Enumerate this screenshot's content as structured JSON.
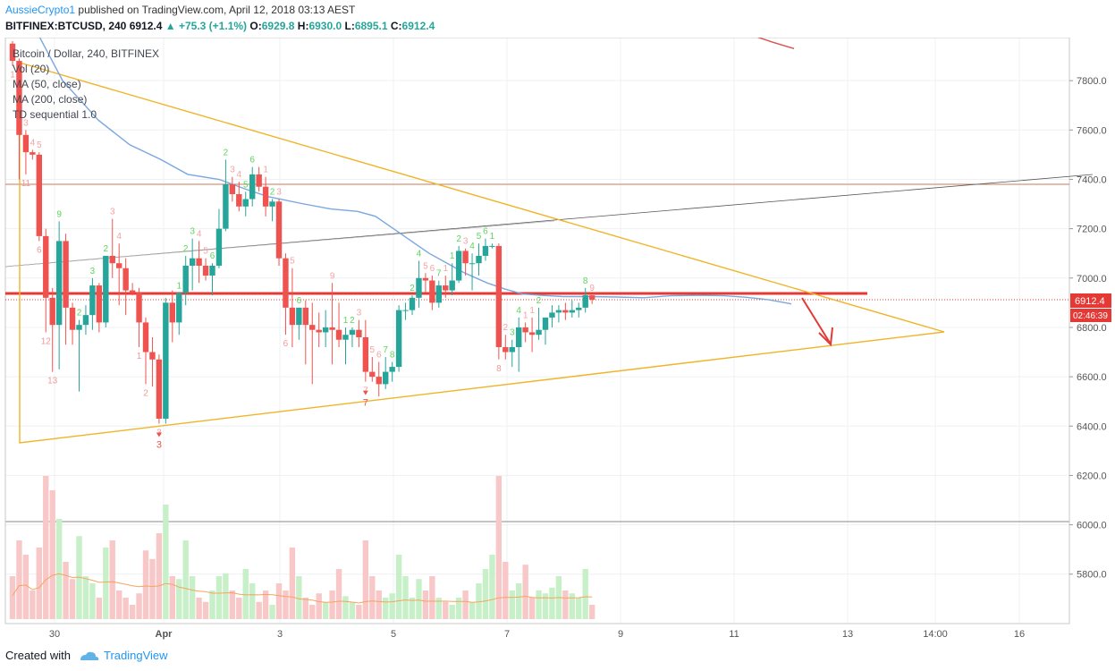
{
  "header": {
    "author": "AussieCrypto1",
    "published": "published on TradingView.com, April 12, 2018 03:13 AEST",
    "symbol": "BITFINEX:BTCUSD, 240",
    "last": "6912.4",
    "change": "+75.3 (+1.1%)",
    "ohlc": {
      "O": "6929.8",
      "H": "6930.0",
      "L": "6895.1",
      "C": "6912.4"
    }
  },
  "legend": [
    "Bitcoin / Dollar, 240, BITFINEX",
    "Vol (20)",
    "MA (50, close)",
    "MA (200, close)",
    "TD sequential 1.0"
  ],
  "footer": {
    "created": "Created with",
    "brand": "TradingView"
  },
  "colors": {
    "up": "#26a69a",
    "up_vol": "#c8f0c8",
    "down": "#ef5350",
    "down_vol": "#f8c8c8",
    "ma50": "#7aa7e0",
    "ma200": "#d9534f",
    "triangle": "#f0b429",
    "vol_ma": "#f4a460",
    "support_line": "#e53935"
  },
  "chart_data": {
    "type": "candlestick",
    "ylim": [
      5650,
      7980
    ],
    "y_ticks": [
      5800,
      6000,
      6200,
      6400,
      6600,
      6800,
      7000,
      7200,
      7400,
      7600,
      7800
    ],
    "x_ticks": [
      "30",
      "Apr",
      "3",
      "5",
      "7",
      "9",
      "11",
      "13",
      "14:00",
      "16"
    ],
    "price_label": "6912.4",
    "countdown_label": "02:46:39",
    "candles": [
      [
        7950,
        7960,
        7860,
        7880,
        0.3
      ],
      [
        7880,
        7890,
        7400,
        7580,
        0.55
      ],
      [
        7580,
        7600,
        7420,
        7510,
        0.45
      ],
      [
        7510,
        7520,
        7480,
        7500,
        0.2
      ],
      [
        7500,
        7510,
        7150,
        7170,
        0.5
      ],
      [
        7170,
        7200,
        6780,
        6920,
        1.0
      ],
      [
        6920,
        6960,
        6620,
        6810,
        0.9
      ],
      [
        6810,
        7230,
        6630,
        7150,
        0.7
      ],
      [
        7150,
        7180,
        6730,
        6880,
        0.4
      ],
      [
        6880,
        6900,
        6730,
        6790,
        0.28
      ],
      [
        6790,
        6830,
        6540,
        6810,
        0.58
      ],
      [
        6810,
        6890,
        6770,
        6850,
        0.3
      ],
      [
        6850,
        7000,
        6790,
        6970,
        0.25
      ],
      [
        6970,
        6980,
        6780,
        6820,
        0.15
      ],
      [
        6820,
        7090,
        6800,
        7090,
        0.5
      ],
      [
        7090,
        7240,
        7000,
        7060,
        0.55
      ],
      [
        7060,
        7140,
        6890,
        7040,
        0.2
      ],
      [
        7040,
        7080,
        6850,
        6950,
        0.15
      ],
      [
        6950,
        6980,
        6930,
        6940,
        0.1
      ],
      [
        6940,
        6960,
        6720,
        6820,
        0.18
      ],
      [
        6820,
        6840,
        6570,
        6700,
        0.48
      ],
      [
        6700,
        6760,
        6560,
        6670,
        0.42
      ],
      [
        6670,
        6690,
        6410,
        6430,
        0.6
      ],
      [
        6430,
        6920,
        6410,
        6900,
        0.8
      ],
      [
        6900,
        6950,
        6740,
        6820,
        0.3
      ],
      [
        6820,
        6940,
        6770,
        6940,
        0.28
      ],
      [
        6940,
        7090,
        6890,
        7050,
        0.55
      ],
      [
        7050,
        7160,
        6950,
        7080,
        0.3
      ],
      [
        7080,
        7150,
        6980,
        7050,
        0.15
      ],
      [
        7050,
        7080,
        6990,
        7010,
        0.12
      ],
      [
        7010,
        7060,
        6930,
        7050,
        0.2
      ],
      [
        7050,
        7280,
        7040,
        7200,
        0.3
      ],
      [
        7200,
        7480,
        7190,
        7380,
        0.32
      ],
      [
        7380,
        7410,
        7310,
        7340,
        0.2
      ],
      [
        7340,
        7390,
        7270,
        7290,
        0.15
      ],
      [
        7290,
        7350,
        7250,
        7320,
        0.35
      ],
      [
        7320,
        7450,
        7290,
        7420,
        0.25
      ],
      [
        7420,
        7450,
        7350,
        7370,
        0.12
      ],
      [
        7370,
        7410,
        7250,
        7290,
        0.2
      ],
      [
        7290,
        7320,
        7230,
        7310,
        0.1
      ],
      [
        7310,
        7320,
        7050,
        7080,
        0.25
      ],
      [
        7080,
        7100,
        6770,
        6880,
        0.2
      ],
      [
        6880,
        7040,
        6720,
        6810,
        0.5
      ],
      [
        6810,
        6880,
        6750,
        6880,
        0.3
      ],
      [
        6880,
        6910,
        6650,
        6810,
        0.15
      ],
      [
        6810,
        6900,
        6570,
        6790,
        0.1
      ],
      [
        6790,
        6860,
        6720,
        6780,
        0.18
      ],
      [
        6780,
        6870,
        6720,
        6800,
        0.12
      ],
      [
        6800,
        6980,
        6650,
        6790,
        0.2
      ],
      [
        6790,
        6900,
        6720,
        6750,
        0.35
      ],
      [
        6750,
        6800,
        6650,
        6770,
        0.16
      ],
      [
        6770,
        6800,
        6720,
        6790,
        0.12
      ],
      [
        6790,
        6830,
        6720,
        6760,
        0.1
      ],
      [
        6760,
        6830,
        6580,
        6620,
        0.55
      ],
      [
        6620,
        6680,
        6580,
        6600,
        0.3
      ],
      [
        6600,
        6660,
        6520,
        6570,
        0.2
      ],
      [
        6570,
        6680,
        6550,
        6620,
        0.15
      ],
      [
        6620,
        6660,
        6580,
        6640,
        0.18
      ],
      [
        6640,
        6890,
        6620,
        6870,
        0.45
      ],
      [
        6870,
        6900,
        6830,
        6870,
        0.3
      ],
      [
        6870,
        6930,
        6850,
        6920,
        0.15
      ],
      [
        6920,
        7070,
        6880,
        7000,
        0.28
      ],
      [
        7000,
        7020,
        6940,
        6990,
        0.2
      ],
      [
        6990,
        7010,
        6870,
        6900,
        0.3
      ],
      [
        6900,
        6990,
        6880,
        6970,
        0.15
      ],
      [
        6970,
        7010,
        6920,
        6950,
        0.12
      ],
      [
        6950,
        7060,
        6930,
        6990,
        0.1
      ],
      [
        6990,
        7130,
        6980,
        7110,
        0.15
      ],
      [
        7110,
        7120,
        7010,
        7060,
        0.2
      ],
      [
        7060,
        7100,
        6950,
        7060,
        0.12
      ],
      [
        7060,
        7140,
        7010,
        7090,
        0.25
      ],
      [
        7090,
        7160,
        7070,
        7130,
        0.35
      ],
      [
        7130,
        7140,
        7120,
        7130,
        0.45
      ],
      [
        7130,
        7140,
        6670,
        6720,
        1.0
      ],
      [
        6720,
        6770,
        6670,
        6700,
        0.4
      ],
      [
        6700,
        6750,
        6640,
        6720,
        0.2
      ],
      [
        6720,
        6840,
        6620,
        6800,
        0.25
      ],
      [
        6800,
        6820,
        6740,
        6780,
        0.38
      ],
      [
        6780,
        6840,
        6700,
        6770,
        0.15
      ],
      [
        6770,
        6880,
        6750,
        6790,
        0.2
      ],
      [
        6790,
        6830,
        6730,
        6840,
        0.18
      ],
      [
        6840,
        6890,
        6800,
        6860,
        0.22
      ],
      [
        6860,
        6890,
        6820,
        6870,
        0.3
      ],
      [
        6870,
        6900,
        6830,
        6860,
        0.2
      ],
      [
        6860,
        6910,
        6840,
        6870,
        0.18
      ],
      [
        6870,
        6900,
        6840,
        6880,
        0.15
      ],
      [
        6880,
        6960,
        6860,
        6930,
        0.35
      ],
      [
        6930,
        6930,
        6895,
        6912,
        0.1
      ]
    ],
    "ma50": [
      [
        12,
        8260
      ],
      [
        35,
        8040
      ],
      [
        70,
        7800
      ],
      [
        110,
        7640
      ],
      [
        145,
        7540
      ],
      [
        180,
        7480
      ],
      [
        210,
        7420
      ],
      [
        245,
        7400
      ],
      [
        275,
        7360
      ],
      [
        300,
        7330
      ],
      [
        340,
        7300
      ],
      [
        370,
        7280
      ],
      [
        400,
        7270
      ],
      [
        420,
        7250
      ],
      [
        440,
        7200
      ],
      [
        460,
        7150
      ],
      [
        480,
        7100
      ],
      [
        500,
        7060
      ],
      [
        520,
        7020
      ],
      [
        545,
        6980
      ],
      [
        565,
        6955
      ],
      [
        585,
        6935
      ],
      [
        605,
        6930
      ],
      [
        630,
        6925
      ],
      [
        660,
        6925
      ],
      [
        690,
        6923
      ],
      [
        720,
        6920
      ],
      [
        750,
        6928
      ],
      [
        780,
        6930
      ],
      [
        810,
        6928
      ],
      [
        835,
        6922
      ],
      [
        860,
        6912
      ],
      [
        885,
        6895
      ]
    ],
    "ma200": [
      [
        815,
        8024
      ],
      [
        840,
        7985
      ],
      [
        865,
        7955
      ],
      [
        888,
        7930
      ]
    ],
    "td_labels": [
      {
        "c": 0,
        "t": "1",
        "pos": "below"
      },
      {
        "c": 2,
        "t": "3",
        "pos": "above"
      },
      {
        "c": 3,
        "t": "4",
        "pos": "above"
      },
      {
        "c": 4,
        "t": "5",
        "pos": "above"
      },
      {
        "c": 2,
        "t": "11",
        "pos": "below"
      },
      {
        "c": 4,
        "t": "6",
        "pos": "below"
      },
      {
        "c": 5,
        "t": "12",
        "pos": "below"
      },
      {
        "c": 6,
        "t": "13",
        "pos": "below"
      },
      {
        "c": 7,
        "t": "9",
        "pos": "above"
      },
      {
        "c": 10,
        "t": "2",
        "pos": "above"
      },
      {
        "c": 12,
        "t": "3",
        "pos": "above"
      },
      {
        "c": 14,
        "t": "2",
        "pos": "above"
      },
      {
        "c": 15,
        "t": "3",
        "pos": "above"
      },
      {
        "c": 16,
        "t": "4",
        "pos": "above"
      },
      {
        "c": 19,
        "t": "1",
        "pos": "below"
      },
      {
        "c": 20,
        "t": "2",
        "pos": "below"
      },
      {
        "c": 22,
        "t": "3",
        "pos": "below"
      },
      {
        "c": 25,
        "t": "1",
        "pos": "above"
      },
      {
        "c": 26,
        "t": "2",
        "pos": "above"
      },
      {
        "c": 27,
        "t": "3",
        "pos": "above"
      },
      {
        "c": 28,
        "t": "4",
        "pos": "above"
      },
      {
        "c": 29,
        "t": "5",
        "pos": "above"
      },
      {
        "c": 30,
        "t": "6",
        "pos": "above"
      },
      {
        "c": 32,
        "t": "2",
        "pos": "above"
      },
      {
        "c": 33,
        "t": "3",
        "pos": "above"
      },
      {
        "c": 34,
        "t": "4",
        "pos": "above"
      },
      {
        "c": 35,
        "t": "5",
        "pos": "above"
      },
      {
        "c": 36,
        "t": "6",
        "pos": "above"
      },
      {
        "c": 38,
        "t": "1",
        "pos": "above"
      },
      {
        "c": 39,
        "t": "2",
        "pos": "above"
      },
      {
        "c": 40,
        "t": "3",
        "pos": "above"
      },
      {
        "c": 41,
        "t": "6",
        "pos": "below"
      },
      {
        "c": 42,
        "t": "5",
        "pos": "above"
      },
      {
        "c": 43,
        "t": "6",
        "pos": "above"
      },
      {
        "c": 48,
        "t": "9",
        "pos": "above"
      },
      {
        "c": 50,
        "t": "1",
        "pos": "above"
      },
      {
        "c": 51,
        "t": "2",
        "pos": "above"
      },
      {
        "c": 52,
        "t": "3",
        "pos": "above"
      },
      {
        "c": 53,
        "t": "7",
        "pos": "below"
      },
      {
        "c": 54,
        "t": "5",
        "pos": "above"
      },
      {
        "c": 55,
        "t": "6",
        "pos": "above"
      },
      {
        "c": 56,
        "t": "7",
        "pos": "above"
      },
      {
        "c": 57,
        "t": "8",
        "pos": "above"
      },
      {
        "c": 60,
        "t": "2",
        "pos": "above"
      },
      {
        "c": 61,
        "t": "4",
        "pos": "above"
      },
      {
        "c": 62,
        "t": "5",
        "pos": "above"
      },
      {
        "c": 63,
        "t": "6",
        "pos": "above"
      },
      {
        "c": 64,
        "t": "7",
        "pos": "above"
      },
      {
        "c": 65,
        "t": "1",
        "pos": "above"
      },
      {
        "c": 66,
        "t": "1",
        "pos": "above"
      },
      {
        "c": 67,
        "t": "2",
        "pos": "above"
      },
      {
        "c": 68,
        "t": "3",
        "pos": "above"
      },
      {
        "c": 69,
        "t": "4",
        "pos": "above"
      },
      {
        "c": 70,
        "t": "5",
        "pos": "above"
      },
      {
        "c": 71,
        "t": "6",
        "pos": "above"
      },
      {
        "c": 72,
        "t": "1",
        "pos": "above"
      },
      {
        "c": 73,
        "t": "8",
        "pos": "below"
      },
      {
        "c": 74,
        "t": "2",
        "pos": "above"
      },
      {
        "c": 75,
        "t": "3",
        "pos": "above"
      },
      {
        "c": 76,
        "t": "4",
        "pos": "above"
      },
      {
        "c": 77,
        "t": "1",
        "pos": "above"
      },
      {
        "c": 78,
        "t": "1",
        "pos": "above"
      },
      {
        "c": 79,
        "t": "2",
        "pos": "above"
      },
      {
        "c": 86,
        "t": "8",
        "pos": "above"
      },
      {
        "c": 87,
        "t": "9",
        "pos": "above"
      }
    ],
    "td_big": [
      {
        "c": 22,
        "t": "3"
      },
      {
        "c": 53,
        "t": "7"
      }
    ]
  }
}
